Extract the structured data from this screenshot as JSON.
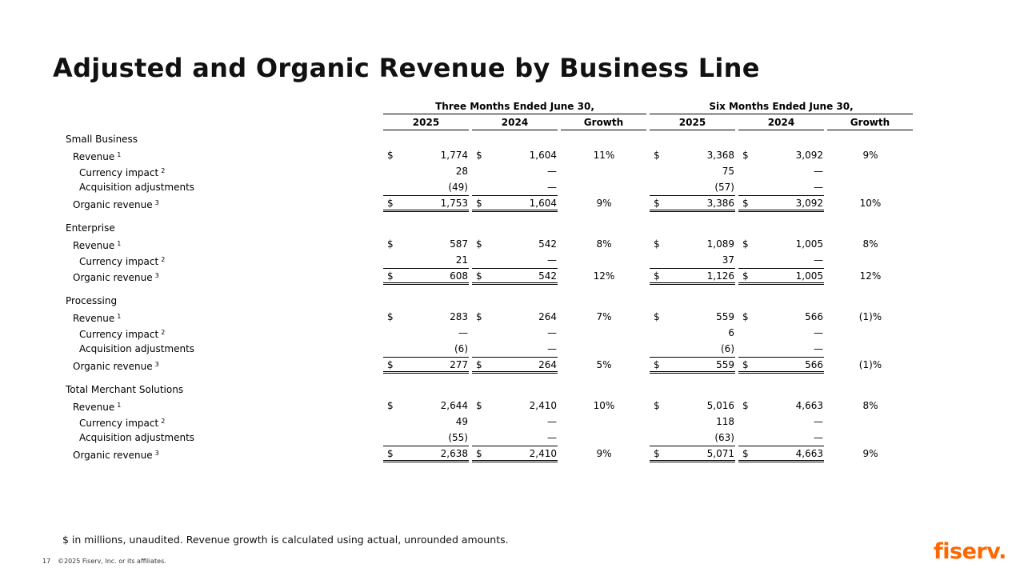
{
  "title": "Adjusted and Organic Revenue by Business Line",
  "period_headers": [
    "Three Months Ended June 30,",
    "Six Months Ended June 30,"
  ],
  "column_headers": [
    "2025",
    "2024",
    "Growth",
    "2025",
    "2024",
    "Growth"
  ],
  "sections": [
    {
      "name": "Small Business",
      "rows": [
        {
          "label": "Revenue",
          "sup": "1",
          "indent": 1,
          "dollar": true,
          "values": [
            "1,774",
            "1,604",
            "11%",
            "3,368",
            "3,092",
            "9%"
          ]
        },
        {
          "label": "Currency impact",
          "sup": "2",
          "indent": 2,
          "dollar": false,
          "values": [
            "28",
            "—",
            "",
            "75",
            "—",
            ""
          ]
        },
        {
          "label": "Acquisition adjustments",
          "sup": "",
          "indent": 2,
          "dollar": false,
          "values": [
            "(49)",
            "—",
            "",
            "(57)",
            "—",
            ""
          ]
        },
        {
          "label": "Organic revenue",
          "sup": "3",
          "indent": 1,
          "dollar": true,
          "total": true,
          "values": [
            "1,753",
            "1,604",
            "9%",
            "3,386",
            "3,092",
            "10%"
          ]
        }
      ]
    },
    {
      "name": "Enterprise",
      "rows": [
        {
          "label": "Revenue",
          "sup": "1",
          "indent": 1,
          "dollar": true,
          "values": [
            "587",
            "542",
            "8%",
            "1,089",
            "1,005",
            "8%"
          ]
        },
        {
          "label": "Currency impact",
          "sup": "2",
          "indent": 2,
          "dollar": false,
          "values": [
            "21",
            "—",
            "",
            "37",
            "—",
            ""
          ]
        },
        {
          "label": "Organic revenue",
          "sup": "3",
          "indent": 1,
          "dollar": true,
          "total": true,
          "values": [
            "608",
            "542",
            "12%",
            "1,126",
            "1,005",
            "12%"
          ]
        }
      ]
    },
    {
      "name": "Processing",
      "rows": [
        {
          "label": "Revenue",
          "sup": "1",
          "indent": 1,
          "dollar": true,
          "values": [
            "283",
            "264",
            "7%",
            "559",
            "566",
            "(1)%"
          ]
        },
        {
          "label": "Currency impact",
          "sup": "2",
          "indent": 2,
          "dollar": false,
          "values": [
            "—",
            "—",
            "",
            "6",
            "—",
            ""
          ]
        },
        {
          "label": "Acquisition adjustments",
          "sup": "",
          "indent": 2,
          "dollar": false,
          "values": [
            "(6)",
            "—",
            "",
            "(6)",
            "—",
            ""
          ]
        },
        {
          "label": "Organic revenue",
          "sup": "3",
          "indent": 1,
          "dollar": true,
          "total": true,
          "values": [
            "277",
            "264",
            "5%",
            "559",
            "566",
            "(1)%"
          ]
        }
      ]
    },
    {
      "name": "Total Merchant Solutions",
      "rows": [
        {
          "label": "Revenue",
          "sup": "1",
          "indent": 1,
          "dollar": true,
          "values": [
            "2,644",
            "2,410",
            "10%",
            "5,016",
            "4,663",
            "8%"
          ]
        },
        {
          "label": "Currency impact",
          "sup": "2",
          "indent": 2,
          "dollar": false,
          "values": [
            "49",
            "—",
            "",
            "118",
            "—",
            ""
          ]
        },
        {
          "label": "Acquisition adjustments",
          "sup": "",
          "indent": 2,
          "dollar": false,
          "values": [
            "(55)",
            "—",
            "",
            "(63)",
            "—",
            ""
          ]
        },
        {
          "label": "Organic revenue",
          "sup": "3",
          "indent": 1,
          "dollar": true,
          "total": true,
          "values": [
            "2,638",
            "2,410",
            "9%",
            "5,071",
            "4,663",
            "9%"
          ]
        }
      ]
    }
  ],
  "currency_symbol": "$",
  "footnote": "$ in millions, unaudited. Revenue growth is calculated using actual, unrounded amounts.",
  "page_number": "17",
  "copyright": "©2025 Fiserv, Inc. or its affiliates.",
  "logo_text": "fiserv.",
  "colors": {
    "brand": "#ff6600",
    "text": "#000000"
  }
}
